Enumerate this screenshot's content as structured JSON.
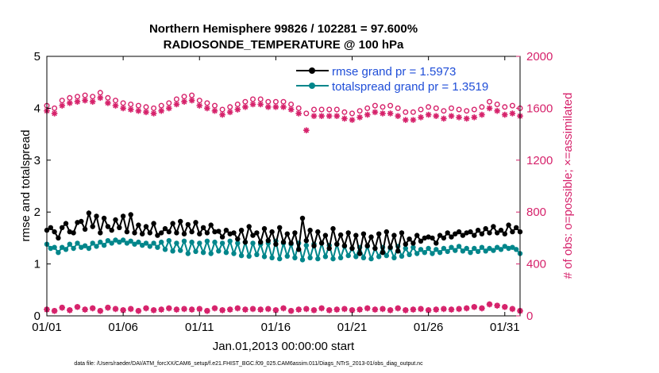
{
  "colors": {
    "rmse": "#000000",
    "spread": "#00868b",
    "obs": "#d6226b",
    "legend_text": "#1f4ed8",
    "axis": "#000000"
  },
  "chart_data": {
    "type": "line",
    "title": "Northern Hemisphere 99826 / 102281 = 97.600%",
    "subtitle": "RADIOSONDE_TEMPERATURE @ 100 hPa",
    "xlabel": "Jan.01,2013 00:00:00 start",
    "ylabel": "rmse and totalspread",
    "ylabel_right": "# of obs: o=possible; ×=assimilated",
    "xlim": [
      1,
      32
    ],
    "ylim": [
      0,
      5
    ],
    "ylim_right": [
      0,
      2000
    ],
    "x_tick_values": [
      1,
      6,
      11,
      16,
      21,
      26,
      31
    ],
    "x_tick_labels": [
      "01/01",
      "01/06",
      "01/11",
      "01/16",
      "01/21",
      "01/26",
      "01/31"
    ],
    "y_ticks": [
      "0",
      "1",
      "2",
      "3",
      "4",
      "5"
    ],
    "y_ticks_right": [
      "0",
      "400",
      "800",
      "1200",
      "1600",
      "2000"
    ],
    "legend": [
      "rmse grand pr = 1.5973",
      "totalspread grand pr = 1.3519"
    ],
    "footnote": "data file: /Users/raeder/DAI/ATM_forcXX/CAM6_setup/f.e21.FHIST_BGC.f09_025.CAM6assim.011/Diags_NTrS_2013-01/obs_diag_output.nc",
    "series": [
      {
        "name": "rmse",
        "marker": "filled-circle",
        "values": [
          1.65,
          1.7,
          1.62,
          1.5,
          1.7,
          1.78,
          1.62,
          1.6,
          1.8,
          1.82,
          1.67,
          1.98,
          1.72,
          1.92,
          1.6,
          1.88,
          1.72,
          1.65,
          1.85,
          1.7,
          1.92,
          1.62,
          1.95,
          1.6,
          1.75,
          1.58,
          1.72,
          1.6,
          1.78,
          1.55,
          1.6,
          1.68,
          1.62,
          1.78,
          1.6,
          1.82,
          1.58,
          1.76,
          1.62,
          1.8,
          1.58,
          1.7,
          1.6,
          1.75,
          1.62,
          1.63,
          1.52,
          1.65,
          1.58,
          1.6,
          1.48,
          1.65,
          1.42,
          1.72,
          1.55,
          1.6,
          1.42,
          1.68,
          1.45,
          1.62,
          1.38,
          1.7,
          1.42,
          1.58,
          1.4,
          1.6,
          1.28,
          1.88,
          1.45,
          1.65,
          1.35,
          1.62,
          1.4,
          1.55,
          1.3,
          1.68,
          1.38,
          1.56,
          1.35,
          1.6,
          1.3,
          1.55,
          1.2,
          1.58,
          1.35,
          1.52,
          1.3,
          1.58,
          1.22,
          1.62,
          1.32,
          1.55,
          1.25,
          1.6,
          1.38,
          1.48,
          1.4,
          1.55,
          1.44,
          1.5,
          1.52,
          1.5,
          1.4,
          1.55,
          1.5,
          1.6,
          1.52,
          1.58,
          1.62,
          1.55,
          1.6,
          1.62,
          1.55,
          1.65,
          1.58,
          1.68,
          1.6,
          1.72,
          1.6,
          1.65,
          1.58,
          1.75,
          1.62,
          1.7,
          1.62
        ]
      },
      {
        "name": "totalspread",
        "marker": "filled-circle",
        "values": [
          1.38,
          1.3,
          1.32,
          1.22,
          1.32,
          1.28,
          1.38,
          1.3,
          1.4,
          1.32,
          1.35,
          1.3,
          1.4,
          1.34,
          1.42,
          1.36,
          1.45,
          1.4,
          1.46,
          1.42,
          1.46,
          1.4,
          1.44,
          1.38,
          1.42,
          1.36,
          1.4,
          1.34,
          1.4,
          1.32,
          1.42,
          1.28,
          1.45,
          1.25,
          1.4,
          1.26,
          1.44,
          1.2,
          1.42,
          1.24,
          1.4,
          1.22,
          1.44,
          1.2,
          1.42,
          1.25,
          1.4,
          1.22,
          1.44,
          1.2,
          1.4,
          1.16,
          1.42,
          1.15,
          1.4,
          1.18,
          1.38,
          1.14,
          1.4,
          1.12,
          1.44,
          1.1,
          1.4,
          1.15,
          1.38,
          1.12,
          1.4,
          1.08,
          1.36,
          1.12,
          1.38,
          1.1,
          1.4,
          1.14,
          1.36,
          1.1,
          1.38,
          1.12,
          1.34,
          1.16,
          1.3,
          1.14,
          1.32,
          1.12,
          1.34,
          1.1,
          1.3,
          1.14,
          1.32,
          1.16,
          1.3,
          1.12,
          1.34,
          1.15,
          1.3,
          1.18,
          1.32,
          1.2,
          1.28,
          1.22,
          1.3,
          1.2,
          1.28,
          1.22,
          1.3,
          1.24,
          1.32,
          1.26,
          1.34,
          1.25,
          1.3,
          1.22,
          1.3,
          1.24,
          1.32,
          1.25,
          1.3,
          1.26,
          1.32,
          1.28,
          1.34,
          1.3,
          1.32,
          1.28,
          1.2
        ]
      },
      {
        "name": "obs possible",
        "axis": "right",
        "marker": "open-circle",
        "values": [
          1620,
          1630,
          1600,
          1640,
          1660,
          1650,
          1680,
          1670,
          1690,
          1680,
          1700,
          1670,
          1690,
          1700,
          1720,
          1690,
          1680,
          1670,
          1660,
          1650,
          1640,
          1650,
          1630,
          1640,
          1620,
          1630,
          1610,
          1620,
          1600,
          1610,
          1620,
          1630,
          1640,
          1650,
          1670,
          1680,
          1690,
          1680,
          1700,
          1670,
          1660,
          1650,
          1640,
          1630,
          1620,
          1600,
          1590,
          1600,
          1610,
          1620,
          1630,
          1640,
          1650,
          1660,
          1670,
          1680,
          1670,
          1660,
          1650,
          1640,
          1650,
          1660,
          1650,
          1640,
          1630,
          1620,
          1600,
          1580,
          1560,
          1600,
          1590,
          1580,
          1590,
          1600,
          1590,
          1600,
          1590,
          1580,
          1570,
          1550,
          1560,
          1570,
          1580,
          1590,
          1600,
          1610,
          1620,
          1600,
          1610,
          1620,
          1620,
          1610,
          1600,
          1590,
          1570,
          1560,
          1570,
          1580,
          1590,
          1600,
          1610,
          1590,
          1600,
          1590,
          1580,
          1590,
          1600,
          1580,
          1590,
          1600,
          1580,
          1570,
          1590,
          1600,
          1610,
          1620,
          1650,
          1640,
          1630,
          1620,
          1610,
          1600,
          1620,
          1610,
          1600
        ]
      },
      {
        "name": "obs assimilated",
        "axis": "right",
        "marker": "asterisk",
        "values": [
          1580,
          1590,
          1560,
          1600,
          1620,
          1610,
          1640,
          1630,
          1650,
          1640,
          1660,
          1630,
          1650,
          1660,
          1680,
          1650,
          1640,
          1630,
          1620,
          1610,
          1600,
          1610,
          1590,
          1600,
          1580,
          1590,
          1570,
          1580,
          1560,
          1570,
          1580,
          1590,
          1600,
          1610,
          1630,
          1640,
          1650,
          1640,
          1660,
          1630,
          1620,
          1610,
          1600,
          1590,
          1580,
          1560,
          1550,
          1560,
          1570,
          1580,
          1590,
          1600,
          1610,
          1620,
          1630,
          1640,
          1630,
          1620,
          1610,
          1600,
          1610,
          1620,
          1610,
          1600,
          1590,
          1580,
          1560,
          1540,
          1430,
          1550,
          1540,
          1530,
          1540,
          1550,
          1540,
          1550,
          1540,
          1530,
          1520,
          1500,
          1510,
          1520,
          1530,
          1540,
          1550,
          1560,
          1570,
          1550,
          1560,
          1570,
          1560,
          1550,
          1540,
          1530,
          1510,
          1500,
          1510,
          1520,
          1530,
          1540,
          1550,
          1530,
          1540,
          1530,
          1520,
          1530,
          1540,
          1520,
          1530,
          1540,
          1520,
          1510,
          1530,
          1540,
          1550,
          1560,
          1600,
          1590,
          1580,
          1560,
          1550,
          1540,
          1560,
          1550,
          1540
        ]
      },
      {
        "name": "rejected possible",
        "axis": "right",
        "marker": "open-circle",
        "values": [
          50,
          55,
          40,
          50,
          65,
          60,
          45,
          55,
          70,
          60,
          50,
          45,
          60,
          55,
          40,
          50,
          65,
          70,
          55,
          50,
          45,
          60,
          55,
          50,
          40,
          55,
          60,
          50,
          45,
          55,
          50,
          40,
          60,
          55,
          50,
          45,
          55,
          60,
          50,
          45,
          55,
          50,
          40,
          55,
          60,
          50,
          45,
          55,
          50,
          45,
          60,
          55,
          50,
          45,
          55,
          60,
          50,
          45,
          55,
          50,
          45,
          55,
          60,
          50,
          40,
          55,
          50,
          45,
          55,
          50,
          45,
          55,
          60,
          50,
          45,
          55,
          50,
          40,
          55,
          50,
          45,
          55,
          50,
          45,
          60,
          55,
          50,
          45,
          55,
          50,
          45,
          55,
          60,
          50,
          45,
          55,
          50,
          40,
          55,
          50,
          45,
          55,
          50,
          45,
          55,
          60,
          50,
          45,
          55,
          50,
          60,
          55,
          70,
          80,
          60,
          75,
          90,
          85,
          80,
          95,
          70,
          60,
          55,
          50,
          40
        ]
      },
      {
        "name": "rejected assimilated",
        "axis": "right",
        "marker": "asterisk",
        "values": [
          48,
          52,
          38,
          48,
          62,
          58,
          43,
          52,
          68,
          58,
          48,
          43,
          58,
          52,
          38,
          48,
          62,
          68,
          52,
          48,
          43,
          58,
          52,
          48,
          38,
          52,
          58,
          48,
          43,
          52,
          48,
          38,
          58,
          52,
          48,
          43,
          52,
          58,
          48,
          43,
          52,
          48,
          38,
          52,
          58,
          48,
          43,
          52,
          48,
          43,
          58,
          52,
          48,
          43,
          52,
          58,
          48,
          43,
          52,
          48,
          43,
          52,
          58,
          48,
          38,
          52,
          48,
          43,
          52,
          48,
          43,
          52,
          58,
          48,
          43,
          52,
          48,
          38,
          52,
          48,
          43,
          52,
          48,
          43,
          58,
          52,
          48,
          43,
          52,
          48,
          43,
          52,
          58,
          48,
          43,
          52,
          48,
          38,
          52,
          48,
          43,
          52,
          48,
          43,
          52,
          58,
          48,
          43,
          52,
          48,
          58,
          52,
          68,
          78,
          58,
          72,
          88,
          82,
          78,
          92,
          68,
          58,
          52,
          48,
          38
        ]
      }
    ]
  }
}
